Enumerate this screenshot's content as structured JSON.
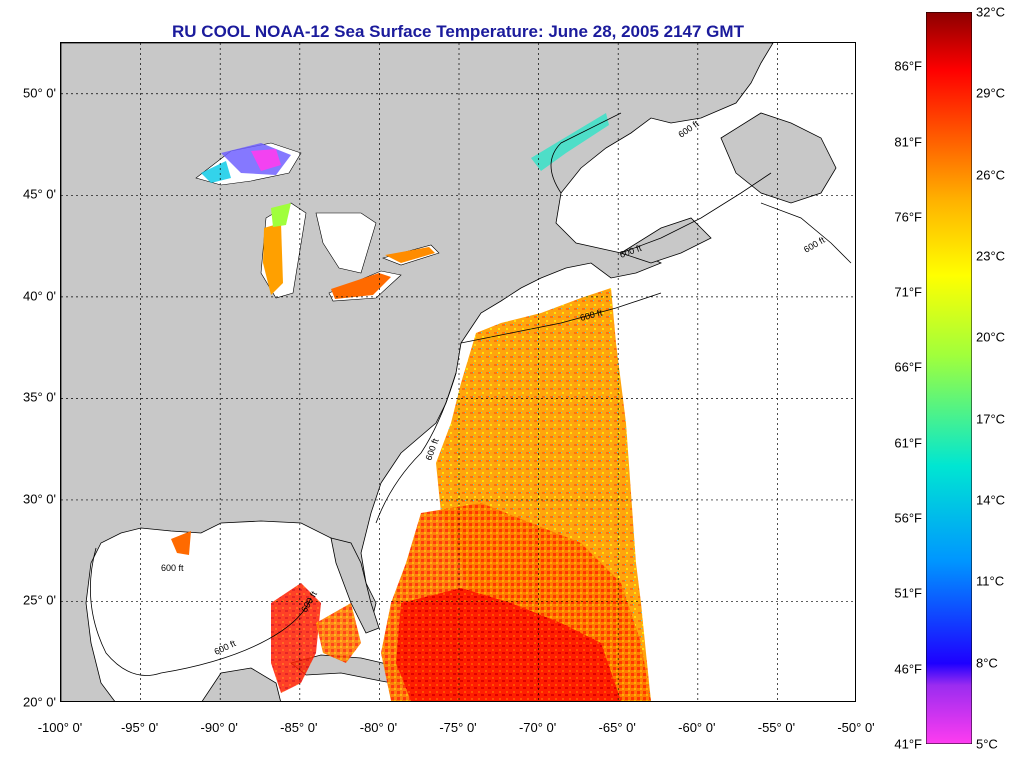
{
  "title": "RU COOL  NOAA-12  Sea Surface Temperature:  June 28, 2005 2147 GMT",
  "map": {
    "lon_range": [
      -100,
      -50
    ],
    "lat_range": [
      20,
      52.5
    ],
    "lat_ticks": [
      {
        "value": 50,
        "label": "50° 0'"
      },
      {
        "value": 45,
        "label": "45° 0'"
      },
      {
        "value": 40,
        "label": "40° 0'"
      },
      {
        "value": 35,
        "label": "35° 0'"
      },
      {
        "value": 30,
        "label": "30° 0'"
      },
      {
        "value": 25,
        "label": "25° 0'"
      },
      {
        "value": 20,
        "label": "20° 0'"
      }
    ],
    "lon_ticks": [
      {
        "value": -100,
        "label": "-100° 0'"
      },
      {
        "value": -95,
        "label": "-95° 0'"
      },
      {
        "value": -90,
        "label": "-90° 0'"
      },
      {
        "value": -85,
        "label": "-85° 0'"
      },
      {
        "value": -80,
        "label": "-80° 0'"
      },
      {
        "value": -75,
        "label": "-75° 0'"
      },
      {
        "value": -70,
        "label": "-70° 0'"
      },
      {
        "value": -65,
        "label": "-65° 0'"
      },
      {
        "value": -60,
        "label": "-60° 0'"
      },
      {
        "value": -55,
        "label": "-55° 0'"
      },
      {
        "value": -50,
        "label": "-50° 0'"
      }
    ],
    "contour_labels": [
      "600 ft",
      "600 ft",
      "600 ft",
      "600 ft",
      "600 ft",
      "600 ft",
      "600 ft",
      "600 ft"
    ],
    "land_color": "#c8c8c8",
    "water_color": "#ffffff",
    "grid": "dotted"
  },
  "colorbar": {
    "min_c": 5,
    "max_c": 32,
    "celsius_labels": [
      {
        "value": 32,
        "label": "32°C"
      },
      {
        "value": 29,
        "label": "29°C"
      },
      {
        "value": 26,
        "label": "26°C"
      },
      {
        "value": 23,
        "label": "23°C"
      },
      {
        "value": 20,
        "label": "20°C"
      },
      {
        "value": 17,
        "label": "17°C"
      },
      {
        "value": 14,
        "label": "14°C"
      },
      {
        "value": 11,
        "label": "11°C"
      },
      {
        "value": 8,
        "label": "8°C"
      },
      {
        "value": 5,
        "label": "5°C"
      }
    ],
    "fahrenheit_labels": [
      {
        "value": 86,
        "label": "86°F"
      },
      {
        "value": 81,
        "label": "81°F"
      },
      {
        "value": 76,
        "label": "76°F"
      },
      {
        "value": 71,
        "label": "71°F"
      },
      {
        "value": 66,
        "label": "66°F"
      },
      {
        "value": 61,
        "label": "61°F"
      },
      {
        "value": 56,
        "label": "56°F"
      },
      {
        "value": 51,
        "label": "51°F"
      },
      {
        "value": 46,
        "label": "46°F"
      },
      {
        "value": 41,
        "label": "41°F"
      }
    ],
    "stops": [
      "#ff3cf0",
      "#9b2cf0",
      "#1e00ff",
      "#0096ff",
      "#00e6d2",
      "#a0ff3c",
      "#ffff00",
      "#ffb400",
      "#ff5a00",
      "#ff0000",
      "#8c0000"
    ]
  }
}
